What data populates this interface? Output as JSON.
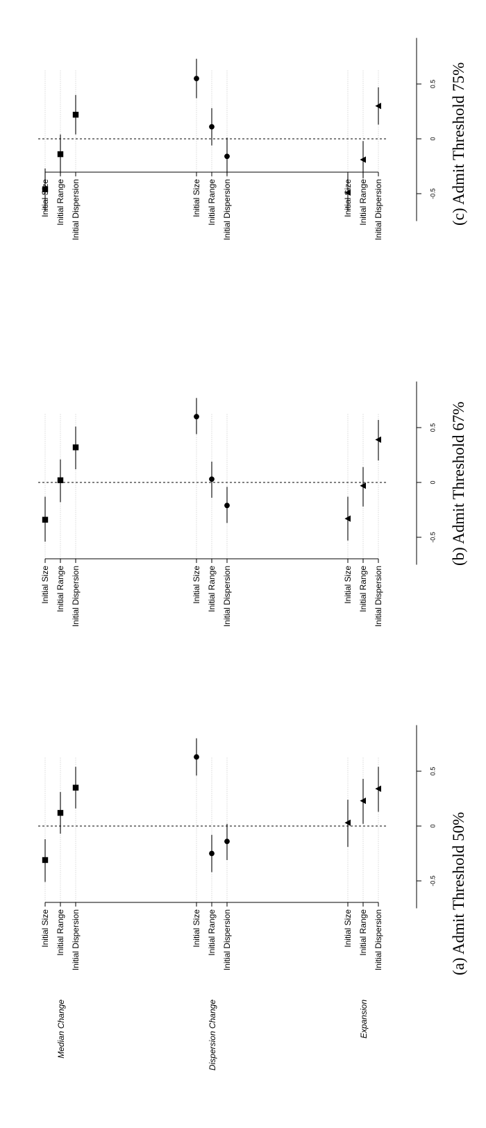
{
  "chart_data": {
    "type": "scatter",
    "orientation": "rotated-90-ccw",
    "groups": [
      "Median Change",
      "Dispersion Change",
      "Expansion"
    ],
    "group_markers": [
      "square",
      "circle",
      "triangle"
    ],
    "rows": [
      "Initial Size",
      "Initial Range",
      "Initial Dispersion"
    ],
    "x_ticks": [
      -0.5,
      0,
      0.5
    ],
    "x_tick_labels": [
      "-0.5",
      "0",
      "0.5"
    ],
    "xlim": [
      -0.78,
      0.95
    ],
    "reference_line": 0,
    "grid": true,
    "panels": [
      {
        "caption": "(a) Admit Threshold 50%",
        "points": [
          [
            {
              "est": -0.31,
              "lo": -0.51,
              "hi": -0.12
            },
            {
              "est": 0.12,
              "lo": -0.07,
              "hi": 0.31
            },
            {
              "est": 0.35,
              "lo": 0.16,
              "hi": 0.54
            }
          ],
          [
            {
              "est": 0.63,
              "lo": 0.46,
              "hi": 0.8
            },
            {
              "est": -0.25,
              "lo": -0.42,
              "hi": -0.08
            },
            {
              "est": -0.14,
              "lo": -0.31,
              "hi": 0.02
            }
          ],
          [
            {
              "est": 0.03,
              "lo": -0.19,
              "hi": 0.24
            },
            {
              "est": 0.23,
              "lo": 0.02,
              "hi": 0.43
            },
            {
              "est": 0.34,
              "lo": 0.13,
              "hi": 0.54
            }
          ]
        ]
      },
      {
        "caption": "(b) Admit Threshold 67%",
        "points": [
          [
            {
              "est": -0.34,
              "lo": -0.54,
              "hi": -0.13
            },
            {
              "est": 0.02,
              "lo": -0.18,
              "hi": 0.21
            },
            {
              "est": 0.32,
              "lo": 0.12,
              "hi": 0.51
            }
          ],
          [
            {
              "est": 0.6,
              "lo": 0.44,
              "hi": 0.77
            },
            {
              "est": 0.03,
              "lo": -0.14,
              "hi": 0.19
            },
            {
              "est": -0.21,
              "lo": -0.37,
              "hi": -0.04
            }
          ],
          [
            {
              "est": -0.33,
              "lo": -0.53,
              "hi": -0.13
            },
            {
              "est": -0.03,
              "lo": -0.22,
              "hi": 0.14
            },
            {
              "est": 0.39,
              "lo": 0.2,
              "hi": 0.57
            }
          ]
        ]
      },
      {
        "caption": "(c) Admit Threshold 75%",
        "points": [
          [
            {
              "est": -0.46,
              "lo": -0.66,
              "hi": -0.27
            },
            {
              "est": -0.14,
              "lo": -0.32,
              "hi": 0.04
            },
            {
              "est": 0.22,
              "lo": 0.04,
              "hi": 0.4
            }
          ],
          [
            {
              "est": 0.55,
              "lo": 0.37,
              "hi": 0.73
            },
            {
              "est": 0.11,
              "lo": -0.06,
              "hi": 0.28
            },
            {
              "est": -0.16,
              "lo": -0.33,
              "hi": 0.01
            }
          ],
          [
            {
              "est": -0.49,
              "lo": -0.66,
              "hi": -0.32
            },
            {
              "est": -0.19,
              "lo": -0.36,
              "hi": -0.02
            },
            {
              "est": 0.3,
              "lo": 0.13,
              "hi": 0.47
            }
          ]
        ]
      }
    ]
  }
}
